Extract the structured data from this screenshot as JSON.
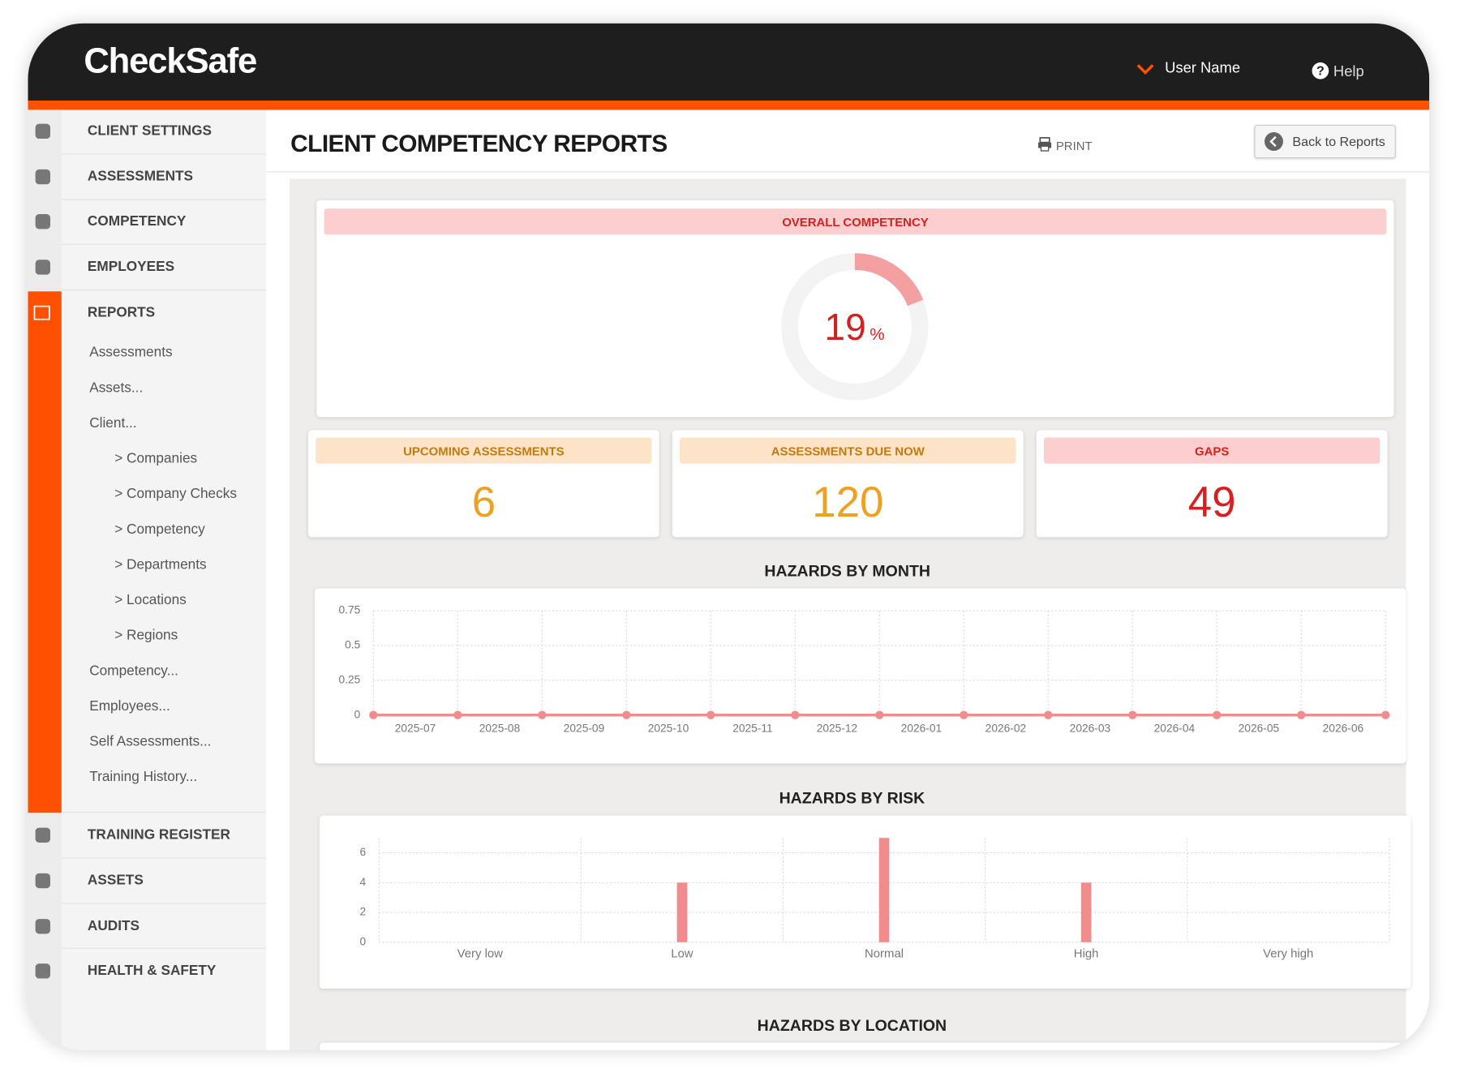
{
  "header": {
    "logo": "CheckSafe",
    "user": "User Name",
    "help": "Help"
  },
  "sidebar": {
    "top": [
      "CLIENT SETTINGS",
      "ASSESSMENTS",
      "COMPETENCY",
      "EMPLOYEES",
      "REPORTS"
    ],
    "sub": [
      "Assessments",
      "Assets...",
      "Client...",
      "> Companies",
      "> Company Checks",
      "> Competency",
      "> Departments",
      "> Locations",
      "> Regions",
      "Competency...",
      "Employees...",
      "Self Assessments...",
      "Training History..."
    ],
    "bottom": [
      "TRAINING REGISTER",
      "ASSETS",
      "AUDITS",
      "HEALTH & SAFETY"
    ]
  },
  "page": {
    "title": "CLIENT COMPETENCY REPORTS",
    "print": "PRINT",
    "back": "Back to Reports"
  },
  "overall": {
    "title": "OVERALL COMPETENCY",
    "value": 19,
    "unit": "%"
  },
  "stats": [
    {
      "label": "UPCOMING ASSESSMENTS",
      "value": "6"
    },
    {
      "label": "ASSESSMENTS DUE NOW",
      "value": "120"
    },
    {
      "label": "GAPS",
      "value": "49"
    }
  ],
  "location_title": "HAZARDS BY LOCATION",
  "chart_data": [
    {
      "type": "line",
      "title": "HAZARDS BY MONTH",
      "categories": [
        "2025-07",
        "2025-08",
        "2025-09",
        "2025-10",
        "2025-11",
        "2025-12",
        "2026-01",
        "2026-02",
        "2026-03",
        "2026-04",
        "2026-05",
        "2026-06",
        null
      ],
      "values": [
        0,
        0,
        0,
        0,
        0,
        0,
        0,
        0,
        0,
        0,
        0,
        0,
        0
      ],
      "color": "#f08c8c",
      "ylim": [
        0,
        0.75
      ],
      "yticks": [
        0,
        0.25,
        0.5,
        0.75
      ],
      "grid": true
    },
    {
      "type": "bar",
      "title": "HAZARDS BY RISK",
      "categories": [
        "Very low",
        "Low",
        "Normal",
        "High",
        "Very high"
      ],
      "values": [
        0,
        4,
        7,
        4,
        0
      ],
      "color": "#f08c8c",
      "ylim": [
        0,
        7
      ],
      "yticks": [
        0,
        2,
        4,
        6
      ],
      "grid": true
    }
  ]
}
